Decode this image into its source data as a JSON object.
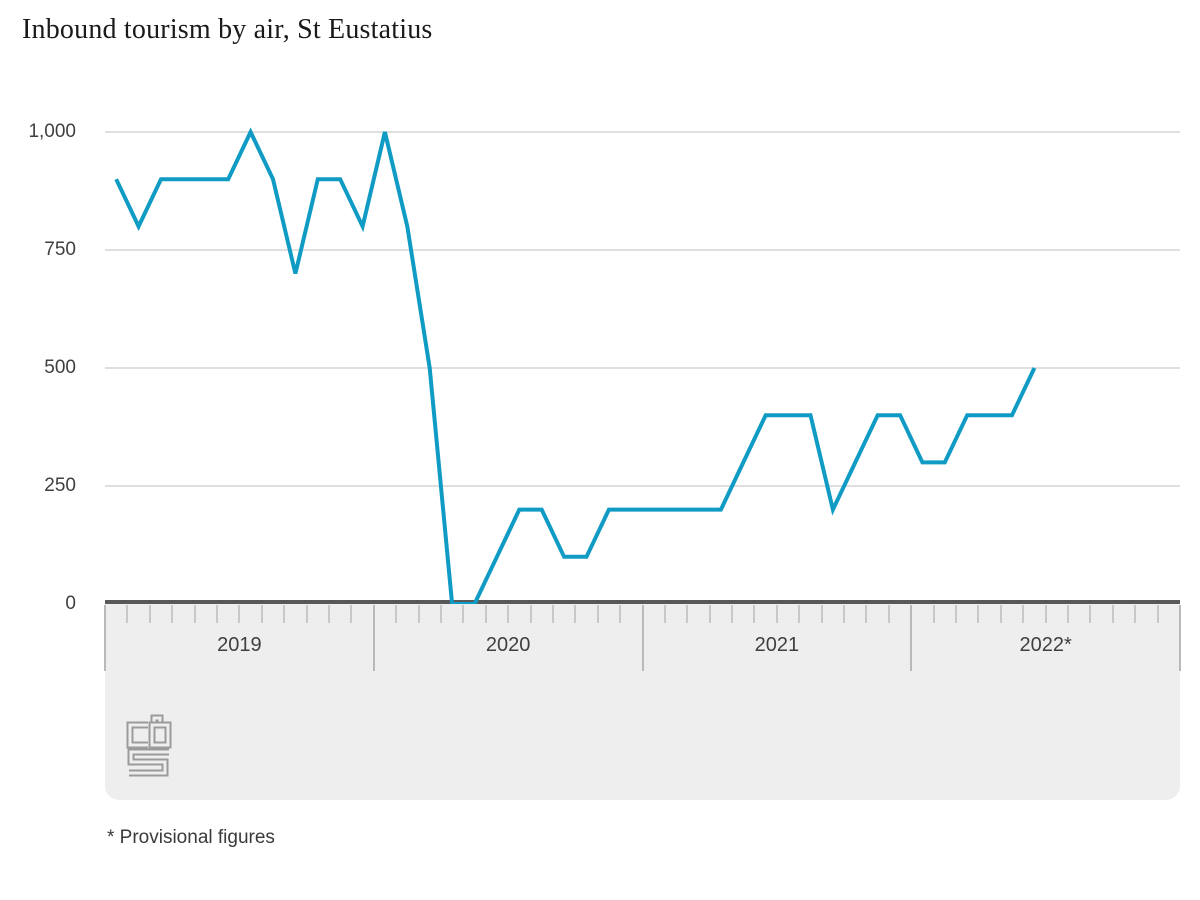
{
  "title": "Inbound tourism by air, St Eustatius",
  "footnote": "* Provisional figures",
  "colors": {
    "line": "#0f9bc4",
    "grid": "#cccccc",
    "zero_axis": "#595959",
    "band": "#eeeeee",
    "month_tick": "#c8c8c8",
    "year_divider": "#b9b9b9",
    "axis_label": "#3f3f3f",
    "title_text": "#1a1a1a",
    "logo": "#9b9b9b"
  },
  "logo_name": "cbs-logo",
  "chart_data": {
    "type": "line",
    "title": "Inbound tourism by air, St Eustatius",
    "xlabel": "",
    "ylabel": "",
    "ylim": [
      0,
      1000
    ],
    "grid": "horizontal",
    "y_ticks": [
      0,
      250,
      500,
      750,
      1000
    ],
    "y_tick_labels": [
      "0",
      "250",
      "500",
      "750",
      "1,000"
    ],
    "x_year_labels": [
      "2019",
      "2020",
      "2021",
      "2022*"
    ],
    "x_total_month_slots": 48,
    "note": "* Provisional figures",
    "series": [
      {
        "name": "Inbound tourism by air, St Eustatius",
        "months": [
          "2019-01",
          "2019-02",
          "2019-03",
          "2019-04",
          "2019-05",
          "2019-06",
          "2019-07",
          "2019-08",
          "2019-09",
          "2019-10",
          "2019-11",
          "2019-12",
          "2020-01",
          "2020-02",
          "2020-03",
          "2020-04",
          "2020-05",
          "2020-06",
          "2020-07",
          "2020-08",
          "2020-09",
          "2020-10",
          "2020-11",
          "2020-12",
          "2021-01",
          "2021-02",
          "2021-03",
          "2021-04",
          "2021-05",
          "2021-06",
          "2021-07",
          "2021-08",
          "2021-09",
          "2021-10",
          "2021-11",
          "2021-12",
          "2022-01",
          "2022-02",
          "2022-03",
          "2022-04",
          "2022-05",
          "2022-06"
        ],
        "values": [
          900,
          800,
          900,
          900,
          900,
          900,
          1000,
          900,
          700,
          900,
          900,
          800,
          1000,
          800,
          500,
          0,
          0,
          100,
          200,
          200,
          100,
          100,
          200,
          200,
          200,
          200,
          200,
          200,
          300,
          400,
          400,
          400,
          200,
          300,
          400,
          400,
          300,
          300,
          400,
          400,
          400,
          500
        ]
      }
    ]
  }
}
